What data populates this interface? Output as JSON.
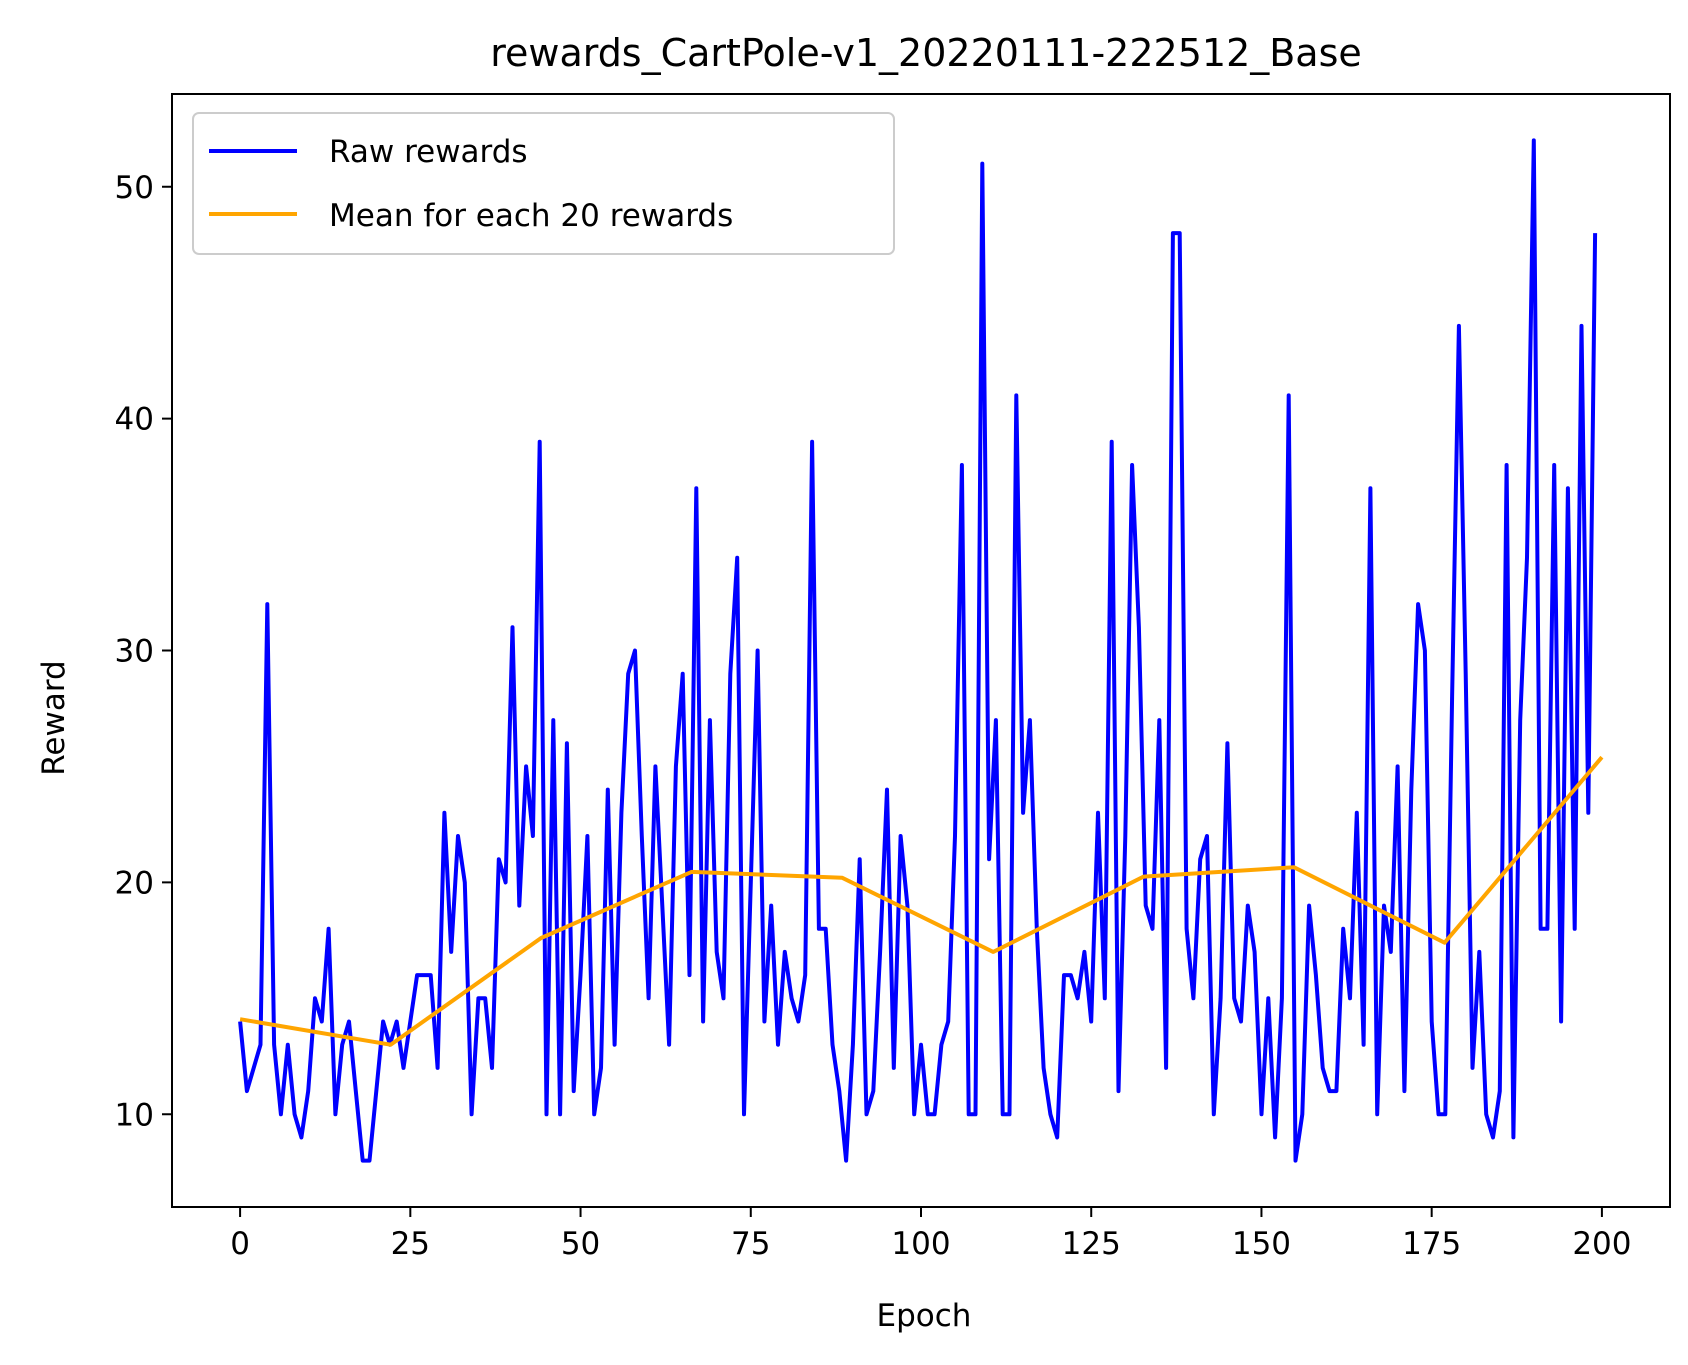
{
  "chart_data": {
    "type": "line",
    "title": "rewards_CartPole-v1_20220111-222512_Base",
    "xlabel": "Epoch",
    "ylabel": "Reward",
    "xlim": [
      -10,
      210
    ],
    "ylim": [
      6,
      54
    ],
    "xticks": [
      0,
      25,
      50,
      75,
      100,
      125,
      150,
      175,
      200
    ],
    "yticks": [
      10,
      20,
      30,
      40,
      50
    ],
    "grid": false,
    "legend_position": "upper-left",
    "series": [
      {
        "name": "Raw rewards",
        "color": "#0000ff",
        "x": [
          0,
          1,
          2,
          3,
          4,
          5,
          6,
          7,
          8,
          9,
          10,
          11,
          12,
          13,
          14,
          15,
          16,
          17,
          18,
          19,
          20,
          21,
          22,
          23,
          24,
          25,
          26,
          27,
          28,
          29,
          30,
          31,
          32,
          33,
          34,
          35,
          36,
          37,
          38,
          39,
          40,
          41,
          42,
          43,
          44,
          45,
          46,
          47,
          48,
          49,
          50,
          51,
          52,
          53,
          54,
          55,
          56,
          57,
          58,
          59,
          60,
          61,
          62,
          63,
          64,
          65,
          66,
          67,
          68,
          69,
          70,
          71,
          72,
          73,
          74,
          75,
          76,
          77,
          78,
          79,
          80,
          81,
          82,
          83,
          84,
          85,
          86,
          87,
          88,
          89,
          90,
          91,
          92,
          93,
          94,
          95,
          96,
          97,
          98,
          99,
          100,
          101,
          102,
          103,
          104,
          105,
          106,
          107,
          108,
          109,
          110,
          111,
          112,
          113,
          114,
          115,
          116,
          117,
          118,
          119,
          120,
          121,
          122,
          123,
          124,
          125,
          126,
          127,
          128,
          129,
          130,
          131,
          132,
          133,
          134,
          135,
          136,
          137,
          138,
          139,
          140,
          141,
          142,
          143,
          144,
          145,
          146,
          147,
          148,
          149,
          150,
          151,
          152,
          153,
          154,
          155,
          156,
          157,
          158,
          159,
          160,
          161,
          162,
          163,
          164,
          165,
          166,
          167,
          168,
          169,
          170,
          171,
          172,
          173,
          174,
          175,
          176,
          177,
          178,
          179,
          180,
          181,
          182,
          183,
          184,
          185,
          186,
          187,
          188,
          189,
          190,
          191,
          192,
          193,
          194,
          195,
          196,
          197,
          198,
          199
        ],
        "values": [
          14,
          11,
          12,
          13,
          32,
          13,
          10,
          13,
          10,
          9,
          11,
          15,
          14,
          18,
          10,
          13,
          14,
          11,
          8,
          8,
          11,
          14,
          13,
          14,
          12,
          14,
          16,
          16,
          16,
          12,
          23,
          17,
          22,
          20,
          10,
          15,
          15,
          12,
          21,
          20,
          31,
          19,
          25,
          22,
          39,
          10,
          27,
          10,
          26,
          11,
          16,
          22,
          10,
          12,
          24,
          13,
          23,
          29,
          30,
          22,
          15,
          25,
          19,
          13,
          25,
          29,
          16,
          37,
          14,
          27,
          17,
          15,
          29,
          34,
          10,
          20,
          30,
          14,
          19,
          13,
          17,
          15,
          14,
          16,
          39,
          18,
          18,
          13,
          11,
          8,
          13,
          21,
          10,
          11,
          17,
          24,
          12,
          22,
          19,
          10,
          13,
          10,
          10,
          13,
          14,
          22,
          38,
          10,
          10,
          51,
          21,
          27,
          10,
          10,
          41,
          23,
          27,
          18,
          12,
          10,
          9,
          16,
          16,
          15,
          17,
          14,
          23,
          15,
          39,
          11,
          22,
          38,
          31,
          19,
          18,
          27,
          12,
          48,
          48,
          18,
          15,
          21,
          22,
          10,
          15,
          26,
          15,
          14,
          19,
          17,
          10,
          15,
          9,
          15,
          41,
          8,
          10,
          19,
          16,
          12,
          11,
          11,
          18,
          15,
          23,
          13,
          37,
          10,
          19,
          17,
          25,
          11,
          24,
          32,
          30,
          14,
          10,
          10,
          28,
          44,
          29,
          12,
          17,
          10,
          9,
          11,
          38,
          9,
          27,
          34,
          52,
          18,
          18,
          38,
          14,
          37,
          18,
          44,
          23,
          48
        ]
      },
      {
        "name": "Mean for each 20 rewards",
        "color": "#ffa500",
        "x": [
          0,
          22.1,
          44.2,
          66.3,
          88.4,
          110.6,
          132.7,
          154.8,
          176.9,
          200
        ],
        "values": [
          14.1,
          13.0,
          17.6,
          20.45,
          20.2,
          17.0,
          20.25,
          20.65,
          17.4,
          25.4
        ]
      }
    ]
  }
}
